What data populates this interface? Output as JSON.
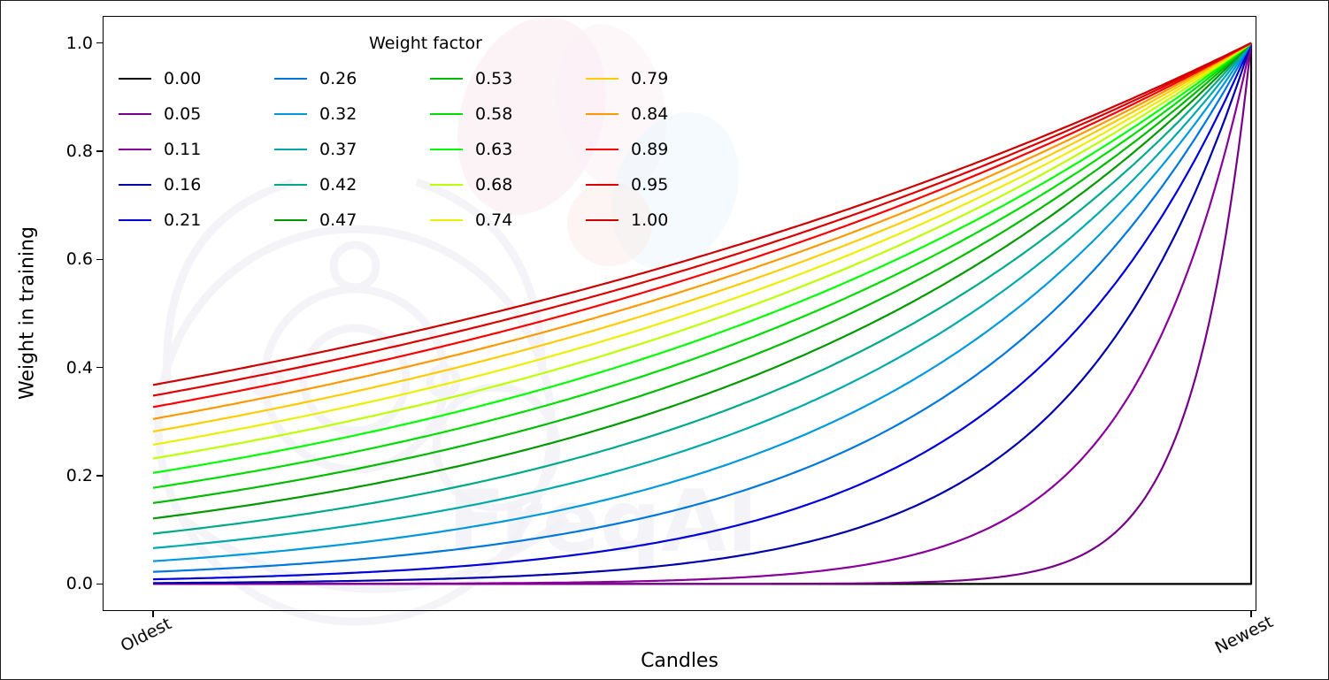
{
  "watermark": {
    "text": "FreqAI"
  },
  "chart_data": {
    "type": "line",
    "title": "",
    "xlabel": "Candles",
    "ylabel": "Weight in training",
    "x_tick_labels": [
      "Oldest",
      "Newest"
    ],
    "y_ticks": [
      "0.0",
      "0.2",
      "0.4",
      "0.6",
      "0.8",
      "1.0"
    ],
    "xlim": [
      0,
      1
    ],
    "ylim": [
      -0.05,
      1.05
    ],
    "grid": false,
    "legend": {
      "title": "Weight factor",
      "position": "upper left",
      "ncols": 4,
      "order": "column-major"
    },
    "formula": "weight(x) = exp(-(1 - x) / factor), x normalized 0 (oldest) to 1 (newest); factor 0.00 is 0 everywhere except weight 1 at the newest candle",
    "x_sample": [
      0,
      0.1,
      0.2,
      0.3,
      0.4,
      0.5,
      0.6,
      0.7,
      0.8,
      0.9,
      1.0
    ],
    "series": [
      {
        "label": "0.00",
        "factor": 0,
        "color": "#000000",
        "values": [
          0,
          0,
          0,
          0,
          0,
          0,
          0,
          0,
          0,
          0,
          1
        ]
      },
      {
        "label": "0.05",
        "factor": 0.0526,
        "color": "#770088",
        "values": [
          0,
          0,
          0,
          0,
          0,
          0.0001,
          0.0005,
          0.0033,
          0.0224,
          0.1496,
          1
        ]
      },
      {
        "label": "0.11",
        "factor": 0.1053,
        "color": "#880099",
        "values": [
          0.0001,
          0.0002,
          0.0005,
          0.0013,
          0.0033,
          0.0087,
          0.0224,
          0.0578,
          0.1496,
          0.3867,
          1
        ]
      },
      {
        "label": "0.16",
        "factor": 0.1579,
        "color": "#0000aa",
        "values": [
          0.0018,
          0.0033,
          0.0063,
          0.0119,
          0.0224,
          0.0421,
          0.0794,
          0.1496,
          0.2817,
          0.5309,
          1
        ]
      },
      {
        "label": "0.21",
        "factor": 0.2105,
        "color": "#0000dd",
        "values": [
          0.0087,
          0.0139,
          0.0224,
          0.036,
          0.0578,
          0.093,
          0.1496,
          0.2405,
          0.3867,
          0.6219,
          1
        ]
      },
      {
        "label": "0.26",
        "factor": 0.2632,
        "color": "#0077dd",
        "values": [
          0.0224,
          0.0327,
          0.0478,
          0.0699,
          0.1023,
          0.1496,
          0.2187,
          0.3198,
          0.4677,
          0.6839,
          1
        ]
      },
      {
        "label": "0.32",
        "factor": 0.3158,
        "color": "#0099dd",
        "values": [
          0.0421,
          0.0578,
          0.0794,
          0.109,
          0.1496,
          0.2053,
          0.2817,
          0.3867,
          0.5309,
          0.7285,
          1
        ]
      },
      {
        "label": "0.37",
        "factor": 0.3684,
        "color": "#00aaaa",
        "values": [
          0.0663,
          0.0869,
          0.114,
          0.1496,
          0.1962,
          0.2574,
          0.3377,
          0.4429,
          0.5811,
          0.7623,
          1
        ]
      },
      {
        "label": "0.42",
        "factor": 0.4211,
        "color": "#00aa88",
        "values": [
          0.093,
          0.1179,
          0.1496,
          0.1897,
          0.2405,
          0.305,
          0.3867,
          0.4904,
          0.6219,
          0.7886,
          1
        ]
      },
      {
        "label": "0.47",
        "factor": 0.4737,
        "color": "#009900",
        "values": [
          0.1211,
          0.1496,
          0.1847,
          0.2281,
          0.2817,
          0.348,
          0.4298,
          0.5309,
          0.6556,
          0.8097,
          1
        ]
      },
      {
        "label": "0.53",
        "factor": 0.5263,
        "color": "#00bb00",
        "values": [
          0.1496,
          0.1809,
          0.2187,
          0.2645,
          0.3198,
          0.3867,
          0.4677,
          0.5655,
          0.6839,
          0.827,
          1
        ]
      },
      {
        "label": "0.58",
        "factor": 0.5789,
        "color": "#00dd00",
        "values": [
          0.1778,
          0.2113,
          0.2511,
          0.2985,
          0.3547,
          0.4216,
          0.5011,
          0.5956,
          0.7079,
          0.8414,
          1
        ]
      },
      {
        "label": "0.63",
        "factor": 0.6316,
        "color": "#00ff00",
        "values": [
          0.2053,
          0.2405,
          0.2817,
          0.3301,
          0.3867,
          0.4531,
          0.5309,
          0.6219,
          0.7285,
          0.8536,
          1
        ]
      },
      {
        "label": "0.68",
        "factor": 0.6842,
        "color": "#bbff00",
        "values": [
          0.2319,
          0.2684,
          0.3106,
          0.3595,
          0.4161,
          0.4815,
          0.5573,
          0.645,
          0.7465,
          0.864,
          1
        ]
      },
      {
        "label": "0.74",
        "factor": 0.7368,
        "color": "#eeee00",
        "values": [
          0.2574,
          0.2948,
          0.3377,
          0.3867,
          0.4429,
          0.5073,
          0.5811,
          0.6656,
          0.7623,
          0.8731,
          1
        ]
      },
      {
        "label": "0.79",
        "factor": 0.7895,
        "color": "#ffcc00",
        "values": [
          0.2817,
          0.3198,
          0.363,
          0.412,
          0.4677,
          0.5309,
          0.6025,
          0.6839,
          0.7762,
          0.881,
          1
        ]
      },
      {
        "label": "0.84",
        "factor": 0.8421,
        "color": "#ff9900",
        "values": [
          0.305,
          0.3434,
          0.3867,
          0.4355,
          0.4904,
          0.5522,
          0.6219,
          0.7003,
          0.7886,
          0.888,
          1
        ]
      },
      {
        "label": "0.89",
        "factor": 0.8947,
        "color": "#ff0000",
        "values": [
          0.3271,
          0.3657,
          0.409,
          0.4573,
          0.5114,
          0.5719,
          0.6395,
          0.7151,
          0.7997,
          0.8942,
          1
        ]
      },
      {
        "label": "0.95",
        "factor": 0.9474,
        "color": "#dd0000",
        "values": [
          0.348,
          0.3867,
          0.4298,
          0.4776,
          0.5309,
          0.5899,
          0.6556,
          0.7285,
          0.8097,
          0.8998,
          1
        ]
      },
      {
        "label": "1.00",
        "factor": 1.0,
        "color": "#cc0000",
        "values": [
          0.3679,
          0.4066,
          0.4493,
          0.4966,
          0.5488,
          0.6065,
          0.6703,
          0.7408,
          0.8187,
          0.9048,
          1
        ]
      }
    ]
  }
}
